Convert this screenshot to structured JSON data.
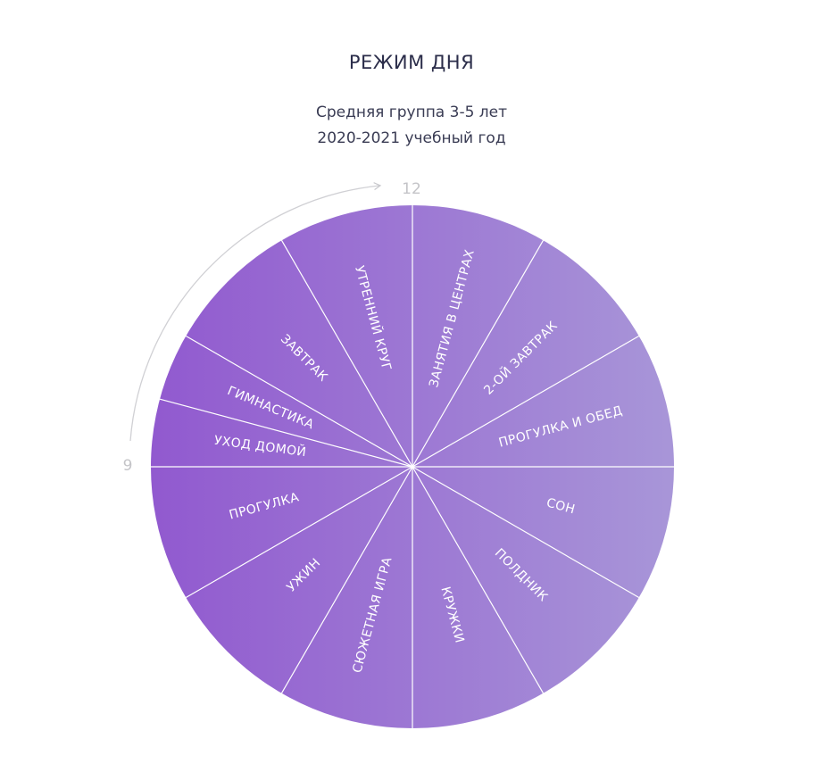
{
  "title": "РЕЖИМ ДНЯ",
  "subtitle_line1": "Средняя группа 3-5 лет",
  "subtitle_line2": "2020-2021 учебный год",
  "hour_labels": {
    "top": "12",
    "left": "9"
  },
  "segments": [
    {
      "label": "ЗАНЯТИЯ В ЦЕНТРАХ"
    },
    {
      "label": "2-ОЙ ЗАВТРАК"
    },
    {
      "label": "ПРОГУЛКА И ОБЕД"
    },
    {
      "label": "СОН"
    },
    {
      "label": "ПОЛДНИК"
    },
    {
      "label": "КРУЖКИ"
    },
    {
      "label": "СЮЖЕТНАЯ ИГРА"
    },
    {
      "label": "УЖИН"
    },
    {
      "label": "ПРОГУЛКА"
    },
    {
      "label": "УХОД ДОМОЙ"
    },
    {
      "label": "ГИМНАСТИКА"
    },
    {
      "label": "ЗАВТРАК"
    },
    {
      "label": "УТРЕННИЙ КРУГ"
    }
  ],
  "colors": {
    "left": "#9159cf",
    "right": "#a896d8",
    "divider": "#ffffff",
    "arrow": "#d0d0d4"
  }
}
